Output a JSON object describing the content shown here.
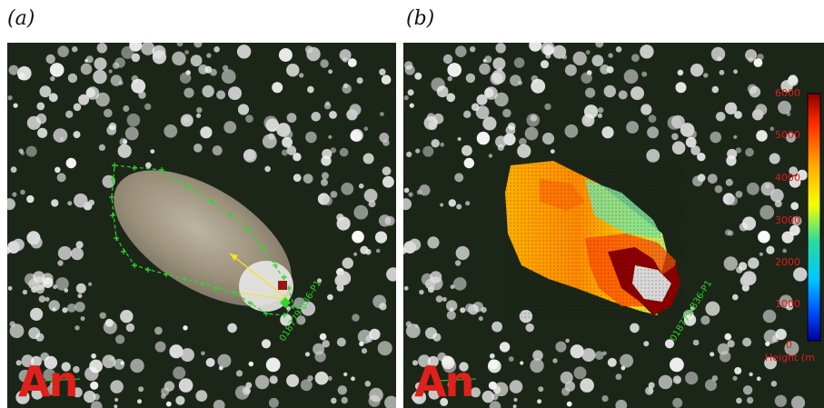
{
  "panels": [
    {
      "label": "(a)",
      "corner_text": "An",
      "plume_id": "018779-B36-P1",
      "colors": {
        "outline": "#2fd62f",
        "arrow": "#f3e51a"
      }
    },
    {
      "label": "(b)",
      "corner_text": "An",
      "plume_id": "018779-B36-P1",
      "colorbar": {
        "ticks": [
          "6000",
          "5000",
          "4000",
          "3000",
          "2000",
          "1000"
        ],
        "bottom_tick": "0",
        "title": "Height (m",
        "colors": [
          "#8b0000",
          "#ff2a00",
          "#ffb000",
          "#f4ff00",
          "#29d9a0",
          "#00c8ff",
          "#0050ff",
          "#0000a0"
        ]
      }
    }
  ]
}
